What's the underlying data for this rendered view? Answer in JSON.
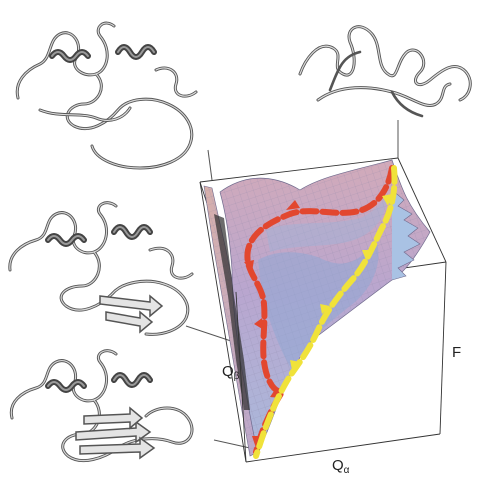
{
  "axes": {
    "q_beta": {
      "main": "Q",
      "sub": "β"
    },
    "q_alpha": {
      "main": "Q",
      "sub": "α"
    },
    "f": {
      "main": "F"
    }
  },
  "structures": [
    {
      "id": "unfolded-coil"
    },
    {
      "id": "helical-intermediate"
    },
    {
      "id": "partial-sheet-intermediate"
    },
    {
      "id": "native-fold"
    }
  ],
  "pathways": [
    {
      "id": "red",
      "color": "#e2472f"
    },
    {
      "id": "yellow",
      "color": "#f0e23a"
    }
  ],
  "colors": {
    "surface_top": "#c9a9bd",
    "surface_mid": "#b7a4cf",
    "surface_low": "#9fb6da",
    "ribbon_dark": "#555555",
    "ribbon_light": "#d9d9d9"
  }
}
